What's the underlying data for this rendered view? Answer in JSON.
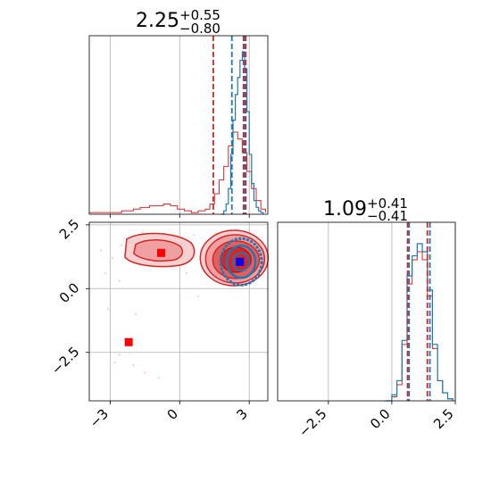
{
  "chart_data": [
    {
      "type": "histogram",
      "panel": "top-left",
      "title": {
        "main": "2.25",
        "sup": "+0.55",
        "sub": "−0.80"
      },
      "xlim": [
        -3.9,
        3.8
      ],
      "colors": {
        "blue": "#1f77b4",
        "red": "#d62728"
      },
      "vlines": {
        "blue": [
          2.25,
          2.8
        ],
        "red": [
          1.45,
          2.75,
          2.85
        ]
      },
      "blue_hist": [
        [
          1.8,
          0
        ],
        [
          1.9,
          2
        ],
        [
          2.0,
          6
        ],
        [
          2.1,
          15
        ],
        [
          2.2,
          35
        ],
        [
          2.3,
          55
        ],
        [
          2.4,
          70
        ],
        [
          2.5,
          80
        ],
        [
          2.6,
          90
        ],
        [
          2.7,
          95
        ],
        [
          2.8,
          85
        ],
        [
          2.9,
          60
        ],
        [
          3.0,
          35
        ],
        [
          3.1,
          18
        ],
        [
          3.2,
          8
        ],
        [
          3.3,
          4
        ],
        [
          3.4,
          2
        ],
        [
          3.5,
          1
        ],
        [
          3.6,
          0
        ]
      ],
      "red_hist": [
        [
          -3.9,
          1
        ],
        [
          -3.5,
          1
        ],
        [
          -3.0,
          1
        ],
        [
          -2.5,
          2
        ],
        [
          -2.0,
          3
        ],
        [
          -1.7,
          4
        ],
        [
          -1.3,
          5
        ],
        [
          -1.0,
          5
        ],
        [
          -0.7,
          6
        ],
        [
          -0.4,
          5
        ],
        [
          -0.1,
          3
        ],
        [
          0.2,
          2
        ],
        [
          0.5,
          1
        ],
        [
          0.8,
          2
        ],
        [
          1.1,
          3
        ],
        [
          1.3,
          6
        ],
        [
          1.5,
          12
        ],
        [
          1.7,
          20
        ],
        [
          1.9,
          28
        ],
        [
          2.1,
          40
        ],
        [
          2.3,
          48
        ],
        [
          2.5,
          44
        ],
        [
          2.7,
          36
        ],
        [
          2.9,
          25
        ],
        [
          3.1,
          15
        ],
        [
          3.3,
          8
        ],
        [
          3.5,
          3
        ],
        [
          3.7,
          1
        ]
      ]
    },
    {
      "type": "scatter",
      "panel": "bottom-left",
      "xlim": [
        -3.9,
        3.8
      ],
      "ylim": [
        -4.4,
        2.6
      ],
      "xticks": [
        -3,
        0,
        3
      ],
      "xtick_labels": [
        "−3",
        "0",
        "3"
      ],
      "yticks": [
        -2.5,
        0,
        2.5
      ],
      "ytick_labels": [
        "−2.5",
        "0.0",
        "2.5"
      ],
      "markers": [
        {
          "x": -0.8,
          "y": 1.4,
          "color": "#ff0000"
        },
        {
          "x": -2.2,
          "y": -2.1,
          "color": "#ff0000"
        },
        {
          "x": 2.6,
          "y": 1.05,
          "color": "#0000ff"
        }
      ]
    },
    {
      "type": "histogram",
      "panel": "bottom-right",
      "title": {
        "main": "1.09",
        "sup": "+0.41",
        "sub": "−0.41"
      },
      "xlim": [
        -4.5,
        2.5
      ],
      "xticks": [
        -2.5,
        0.0,
        2.5
      ],
      "xtick_labels": [
        "−2.5",
        "0.0",
        "2.5"
      ],
      "colors": {
        "blue": "#1f77b4",
        "red": "#d62728"
      },
      "vlines": {
        "blue": [
          0.68,
          1.5
        ],
        "red": [
          0.62,
          1.4
        ]
      },
      "blue_hist": [
        [
          -0.2,
          0
        ],
        [
          0.0,
          3
        ],
        [
          0.2,
          10
        ],
        [
          0.4,
          30
        ],
        [
          0.6,
          62
        ],
        [
          0.8,
          72
        ],
        [
          1.0,
          78
        ],
        [
          1.2,
          74
        ],
        [
          1.4,
          55
        ],
        [
          1.6,
          28
        ],
        [
          1.8,
          10
        ],
        [
          2.0,
          4
        ],
        [
          2.2,
          1
        ],
        [
          2.4,
          0
        ]
      ],
      "red_hist": [
        [
          -0.3,
          0
        ],
        [
          0.0,
          2
        ],
        [
          0.2,
          8
        ],
        [
          0.4,
          28
        ],
        [
          0.6,
          58
        ],
        [
          0.8,
          70
        ],
        [
          1.0,
          74
        ],
        [
          1.2,
          70
        ],
        [
          1.4,
          52
        ],
        [
          1.6,
          26
        ],
        [
          1.8,
          10
        ],
        [
          2.0,
          4
        ],
        [
          2.2,
          1
        ],
        [
          2.4,
          0
        ]
      ]
    }
  ]
}
